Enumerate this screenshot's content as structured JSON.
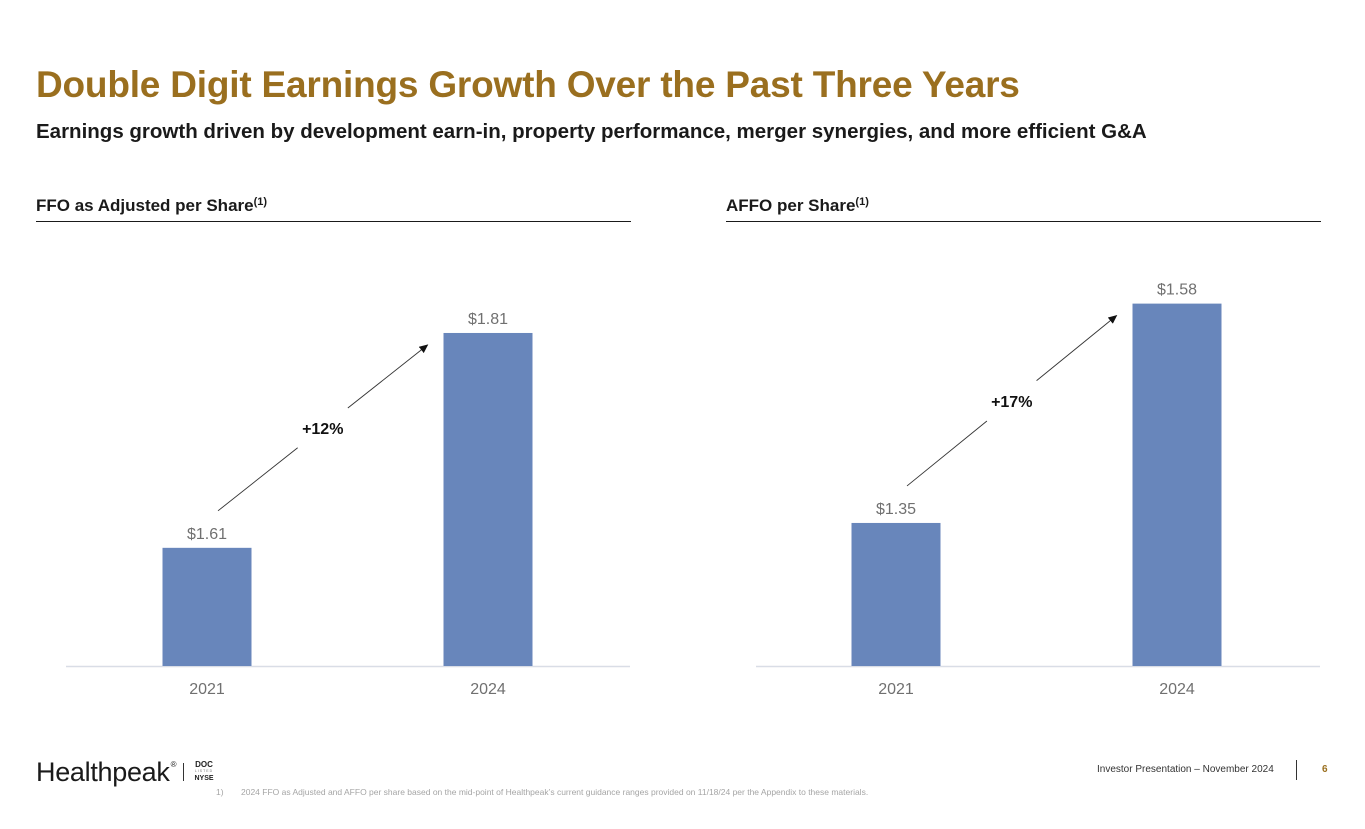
{
  "header": {
    "title": "Double Digit Earnings Growth Over the Past Three Years",
    "subtitle": "Earnings growth driven by development earn-in, property performance, merger synergies, and more efficient G&A"
  },
  "colors": {
    "title": "#9a6f1f",
    "bar": "#6886bb",
    "axis": "#d9dde6",
    "value_label": "#707070",
    "tick_label": "#707070"
  },
  "chart_data": [
    {
      "type": "bar",
      "title": "FFO as Adjusted per Share",
      "title_footnote": "(1)",
      "categories": [
        "2021",
        "2024"
      ],
      "values": [
        1.61,
        1.81
      ],
      "value_labels": [
        "$1.61",
        "$1.81"
      ],
      "annotation": "+12%",
      "xlabel": "",
      "ylabel": "",
      "ylim": [
        1.5,
        1.85
      ],
      "grid": false,
      "legend": "none"
    },
    {
      "type": "bar",
      "title": "AFFO per Share",
      "title_footnote": "(1)",
      "categories": [
        "2021",
        "2024"
      ],
      "values": [
        1.35,
        1.58
      ],
      "value_labels": [
        "$1.35",
        "$1.58"
      ],
      "annotation": "+17%",
      "xlabel": "",
      "ylabel": "",
      "ylim": [
        1.2,
        1.61
      ],
      "grid": false,
      "legend": "none"
    }
  ],
  "footer": {
    "logo": "Healthpeak",
    "logo_mark": "®",
    "ticker_top": "DOC",
    "ticker_mid": "LISTED",
    "ticker_bottom": "NYSE",
    "footnote_number": "1)",
    "footnote_text": "2024 FFO as Adjusted and AFFO per share based on the mid-point of Healthpeak’s current guidance ranges provided on 11/18/24 per the Appendix to these materials.",
    "presentation": "Investor Presentation – November 2024",
    "page_number": "6"
  }
}
